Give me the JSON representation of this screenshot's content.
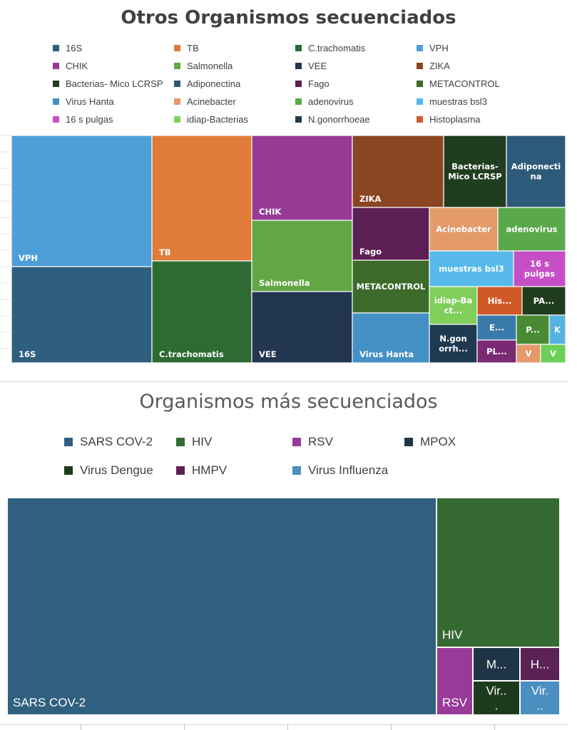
{
  "chart_data": [
    {
      "type": "treemap",
      "title": "Otros Organismos secuenciados",
      "items": [
        {
          "name": "16S",
          "label": "16S",
          "color": "#2f5f7f"
        },
        {
          "name": "TB",
          "label": "TB",
          "color": "#e07b39"
        },
        {
          "name": "C.trachomatis",
          "label": "C.trachomatis",
          "color": "#2e6b33"
        },
        {
          "name": "VPH",
          "label": "VPH",
          "color": "#4e9fd9"
        },
        {
          "name": "CHIK",
          "label": "CHIK",
          "color": "#963a96"
        },
        {
          "name": "Salmonella",
          "label": "Salmonella",
          "color": "#63a744"
        },
        {
          "name": "VEE",
          "label": "VEE",
          "color": "#223650"
        },
        {
          "name": "ZIKA",
          "label": "ZIKA",
          "color": "#8a4523"
        },
        {
          "name": "Bacterias- Mico LCRSP",
          "label": "Bacterias- Mico LCRSP",
          "color": "#213d20"
        },
        {
          "name": "Adiponectina",
          "label": "Adiponectina",
          "color": "#2e5a7a"
        },
        {
          "name": "Fago",
          "label": "Fago",
          "color": "#5c1f55"
        },
        {
          "name": "METACONTROL",
          "label": "METACONTROL",
          "color": "#3c6a2a"
        },
        {
          "name": "Virus Hanta",
          "label": "Virus Hanta",
          "color": "#4590c4"
        },
        {
          "name": "Acinebacter",
          "label": "Acinebacter",
          "color": "#e49a6b"
        },
        {
          "name": "adenovirus",
          "label": "adenovirus",
          "color": "#5aa84a"
        },
        {
          "name": "muestras bsl3",
          "label": "muestras bsl3",
          "color": "#56b9ea"
        },
        {
          "name": "16 s pulgas",
          "label": "16 s pulgas",
          "color": "#c64fc6"
        },
        {
          "name": "idiap-Bacterias",
          "label": "idiap-Bact...",
          "color": "#7fcf5a"
        },
        {
          "name": "N.gonorrhoeae",
          "label": "N.gon orrh...",
          "color": "#1f3a50"
        },
        {
          "name": "Histoplasma",
          "label": "His...",
          "color": "#cf5a28"
        },
        {
          "name": "PA",
          "label": "PA...",
          "color": "#213d20"
        },
        {
          "name": "E",
          "label": "E...",
          "color": "#3a7aaa"
        },
        {
          "name": "P",
          "label": "P...",
          "color": "#4a8a33"
        },
        {
          "name": "K",
          "label": "K",
          "color": "#56b2e0"
        },
        {
          "name": "PL",
          "label": "PL...",
          "color": "#7a2a74"
        },
        {
          "name": "V1",
          "label": "V",
          "color": "#e49a6b"
        },
        {
          "name": "V2",
          "label": "V",
          "color": "#6ccf57"
        }
      ],
      "legend": [
        {
          "label": "16S",
          "color": "#2f5f7f"
        },
        {
          "label": "TB",
          "color": "#e07b39"
        },
        {
          "label": "C.trachomatis",
          "color": "#2e6b33"
        },
        {
          "label": "VPH",
          "color": "#4e9fd9"
        },
        {
          "label": "CHIK",
          "color": "#963a96"
        },
        {
          "label": "Salmonella",
          "color": "#63a744"
        },
        {
          "label": "VEE",
          "color": "#223650"
        },
        {
          "label": "ZIKA",
          "color": "#8a4523"
        },
        {
          "label": "Bacterias- Mico LCRSP",
          "color": "#213d20"
        },
        {
          "label": "Adiponectina",
          "color": "#2e5a7a"
        },
        {
          "label": "Fago",
          "color": "#5c1f55"
        },
        {
          "label": "METACONTROL",
          "color": "#3c6a2a"
        },
        {
          "label": "Virus Hanta",
          "color": "#4590c4"
        },
        {
          "label": "Acinebacter",
          "color": "#e49a6b"
        },
        {
          "label": "adenovirus",
          "color": "#5aa84a"
        },
        {
          "label": "muestras bsl3",
          "color": "#56b9ea"
        },
        {
          "label": "16 s pulgas",
          "color": "#c64fc6"
        },
        {
          "label": "idiap-Bacterias",
          "color": "#7fcf5a"
        },
        {
          "label": "N.gonorrhoeae",
          "color": "#1f3a50"
        },
        {
          "label": "Histoplasma",
          "color": "#cf5a28"
        }
      ]
    },
    {
      "type": "treemap",
      "title": "Organismos más secuenciados",
      "items": [
        {
          "name": "SARS COV-2",
          "label": "SARS COV-2",
          "color": "#30607f"
        },
        {
          "name": "HIV",
          "label": "HIV",
          "color": "#356b33"
        },
        {
          "name": "RSV",
          "label": "RSV",
          "color": "#993a99"
        },
        {
          "name": "MPOX",
          "label": "M...",
          "color": "#1f3547"
        },
        {
          "name": "HMPV",
          "label": "H...",
          "color": "#5b2255"
        },
        {
          "name": "Virus Dengue",
          "label": "Vir...",
          "color": "#1e3a1c"
        },
        {
          "name": "Virus Influenza",
          "label": "Vir...",
          "color": "#4a8fc0"
        }
      ],
      "legend": [
        {
          "label": "SARS COV-2",
          "color": "#30607f"
        },
        {
          "label": "HIV",
          "color": "#356b33"
        },
        {
          "label": "RSV",
          "color": "#993a99"
        },
        {
          "label": "MPOX",
          "color": "#1f3547"
        },
        {
          "label": "Virus Dengue",
          "color": "#1e3a1c"
        },
        {
          "label": "HMPV",
          "color": "#5b2255"
        },
        {
          "label": "Virus Influenza",
          "color": "#4a8fc0"
        }
      ]
    }
  ]
}
